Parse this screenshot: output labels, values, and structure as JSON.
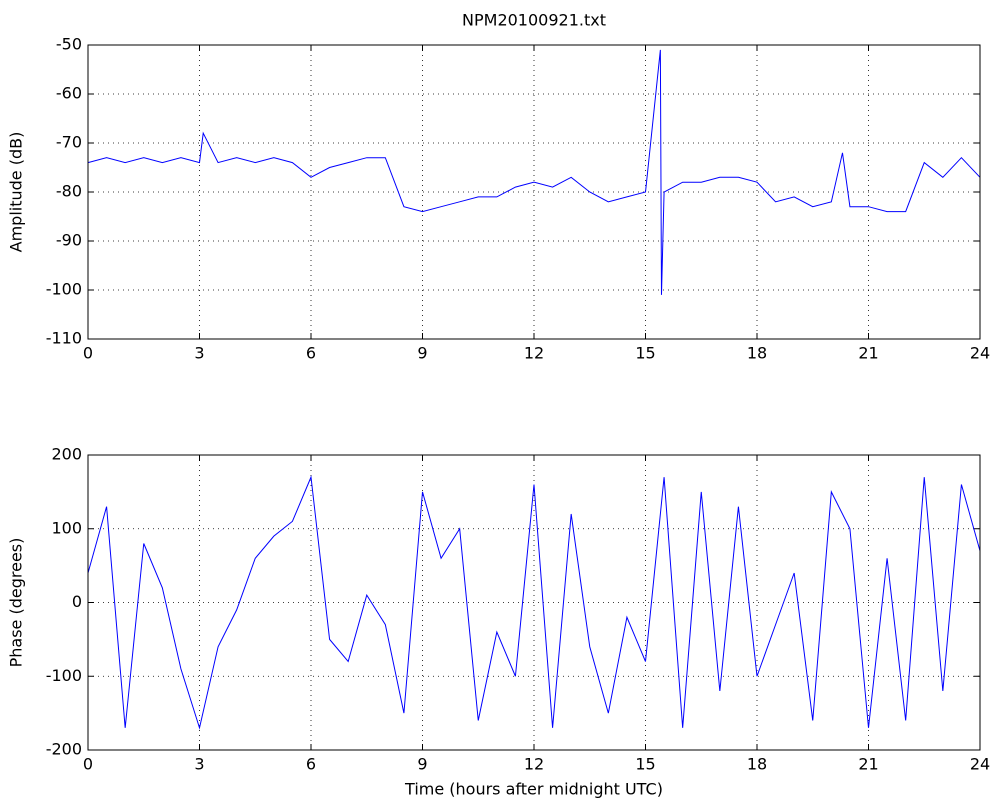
{
  "chart_data": [
    {
      "type": "line",
      "title": "NPM20100921.txt",
      "ylabel": "Amplitude (dB)",
      "x": [
        0,
        0.5,
        1,
        1.5,
        2,
        2.5,
        3,
        3.1,
        3.5,
        4,
        4.5,
        5,
        5.5,
        6,
        6.5,
        7,
        7.5,
        8,
        8.5,
        9,
        9.5,
        10,
        10.5,
        11,
        11.5,
        12,
        12.5,
        13,
        13.5,
        14,
        14.5,
        15,
        15.4,
        15.43,
        15.5,
        16,
        16.5,
        17,
        17.5,
        18,
        18.5,
        19,
        19.5,
        20,
        20.3,
        20.5,
        21,
        21.5,
        22,
        22.5,
        23,
        23.5,
        24
      ],
      "series": [
        {
          "color": "#0000ff",
          "values": [
            -74,
            -73,
            -74,
            -73,
            -74,
            -73,
            -74,
            -68,
            -74,
            -73,
            -74,
            -73,
            -74,
            -77,
            -75,
            -74,
            -73,
            -73,
            -83,
            -84,
            -83,
            -82,
            -81,
            -81,
            -79,
            -78,
            -79,
            -77,
            -80,
            -82,
            -81,
            -80,
            -51,
            -101,
            -80,
            -78,
            -78,
            -77,
            -77,
            -78,
            -82,
            -81,
            -83,
            -82,
            -72,
            -83,
            -83,
            -84,
            -84,
            -74,
            -77,
            -73,
            -77
          ]
        }
      ],
      "xlim": [
        0,
        24
      ],
      "ylim": [
        -110,
        -50
      ],
      "xticks": [
        0,
        3,
        6,
        9,
        12,
        15,
        18,
        21,
        24
      ],
      "yticks": [
        -110,
        -100,
        -90,
        -80,
        -70,
        -60,
        -50
      ],
      "grid": true
    },
    {
      "type": "line",
      "xlabel": "Time (hours after midnight UTC)",
      "ylabel": "Phase (degrees)",
      "x": [
        0,
        0.5,
        1,
        1.5,
        2,
        2.5,
        3,
        3.5,
        4,
        4.5,
        5,
        5.5,
        6,
        6.5,
        7,
        7.5,
        8,
        8.5,
        9,
        9.5,
        10,
        10.5,
        11,
        11.5,
        12,
        12.5,
        13,
        13.5,
        14,
        14.5,
        15,
        15.5,
        16,
        16.5,
        17,
        17.5,
        18,
        18.5,
        19,
        19.5,
        20,
        20.5,
        21,
        21.5,
        22,
        22.5,
        23,
        23.5,
        24
      ],
      "series": [
        {
          "color": "#0000ff",
          "values": [
            40,
            130,
            -170,
            80,
            20,
            -90,
            -170,
            -60,
            -10,
            60,
            90,
            110,
            170,
            -50,
            -80,
            10,
            -30,
            -150,
            150,
            60,
            100,
            -160,
            -40,
            -100,
            160,
            -170,
            120,
            -60,
            -150,
            -20,
            -80,
            170,
            -170,
            150,
            -120,
            130,
            -100,
            -30,
            40,
            -160,
            150,
            100,
            -170,
            60,
            -160,
            170,
            -120,
            160,
            70
          ]
        }
      ],
      "xlim": [
        0,
        24
      ],
      "ylim": [
        -200,
        200
      ],
      "xticks": [
        0,
        3,
        6,
        9,
        12,
        15,
        18,
        21,
        24
      ],
      "yticks": [
        -200,
        -100,
        0,
        100,
        200
      ],
      "grid": true
    }
  ]
}
